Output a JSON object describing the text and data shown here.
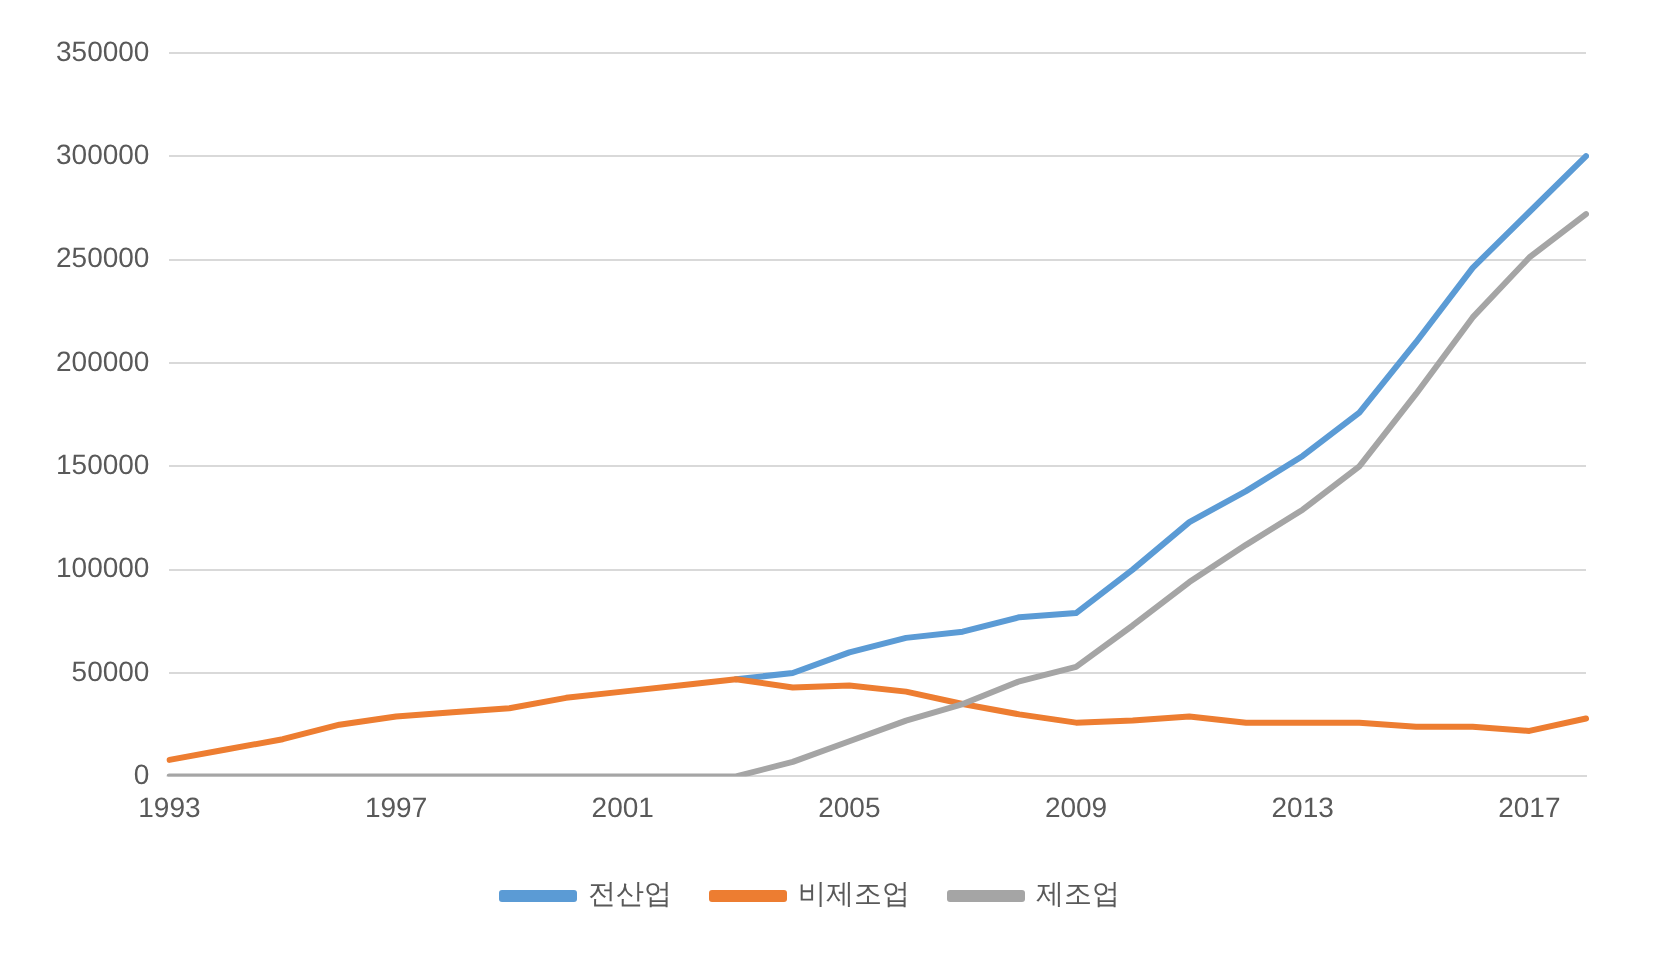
{
  "chart_data": {
    "type": "line",
    "categories": [
      "1993",
      null,
      null,
      null,
      "1997",
      null,
      null,
      null,
      "2001",
      null,
      null,
      null,
      "2005",
      null,
      null,
      null,
      "2009",
      null,
      null,
      null,
      "2013",
      null,
      null,
      null,
      "2017",
      null
    ],
    "series": [
      {
        "name": "전산업",
        "color": "#5b9bd5",
        "values": [
          null,
          null,
          null,
          null,
          null,
          null,
          null,
          null,
          null,
          null,
          47000,
          50000,
          60000,
          67000,
          70000,
          77000,
          79000,
          100000,
          123000,
          138000,
          155000,
          176000,
          210000,
          246000,
          273000,
          300000
        ]
      },
      {
        "name": "비제조업",
        "color": "#ed7d31",
        "values": [
          8000,
          13000,
          18000,
          25000,
          29000,
          31000,
          33000,
          38000,
          41000,
          44000,
          47000,
          43000,
          44000,
          41000,
          35000,
          30000,
          26000,
          27000,
          29000,
          26000,
          26000,
          26000,
          24000,
          24000,
          22000,
          28000
        ]
      },
      {
        "name": "제조업",
        "color": "#a5a5a5",
        "values": [
          0,
          0,
          0,
          0,
          0,
          0,
          0,
          0,
          0,
          0,
          0,
          7000,
          17000,
          27000,
          35000,
          46000,
          53000,
          73000,
          94000,
          112000,
          129000,
          150000,
          185000,
          222000,
          251000,
          272000
        ]
      }
    ],
    "ylim": [
      0,
      350000
    ],
    "yticks": [
      0,
      50000,
      100000,
      150000,
      200000,
      250000,
      300000,
      350000
    ],
    "grid": "y",
    "legend": "bottom",
    "marker": "none",
    "line_style": "solid"
  }
}
